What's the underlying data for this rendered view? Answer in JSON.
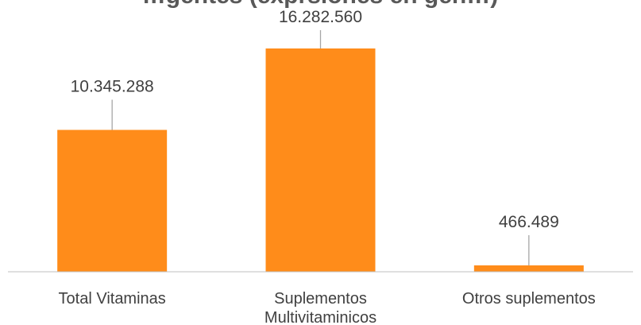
{
  "chart_data": {
    "type": "bar",
    "title": "…gentes (exprsiones en gen…)",
    "categories": [
      "Total Vitaminas",
      "Suplementos Multivitaminicos",
      "Otros suplementos"
    ],
    "category_lines": [
      [
        "Total Vitaminas"
      ],
      [
        "Suplementos",
        "Multivitaminicos"
      ],
      [
        "Otros suplementos"
      ]
    ],
    "values": [
      10345288,
      16282560,
      466489
    ],
    "value_labels": [
      "10.345.288",
      "16.282.560",
      "466.489"
    ],
    "ylim": [
      0,
      17500000
    ],
    "grid": false,
    "legend": "none",
    "colors": {
      "bar": "#FF8C1A",
      "leader_line": "#A6A6A6",
      "axis": "#BFBFBF",
      "text": "#404040"
    }
  }
}
